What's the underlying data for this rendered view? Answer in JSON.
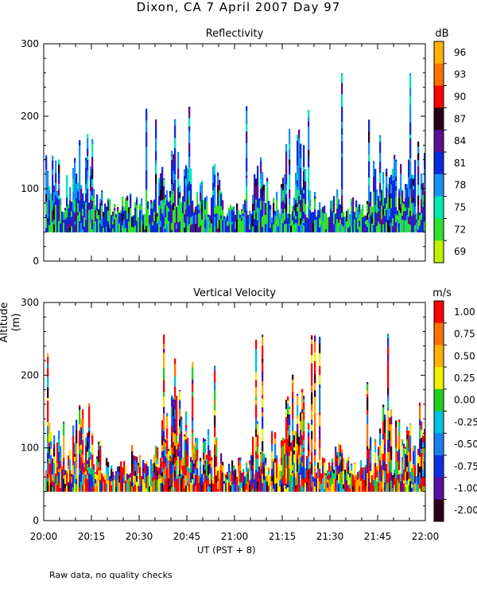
{
  "figure": {
    "title": "Dixon, CA   7 April 2007   Day  97",
    "ylabel": "Altitude (m)",
    "xlabel": "UT  (PST + 8)",
    "footnote": "Raw data, no quality checks"
  },
  "chart_data": [
    {
      "type": "heatmap",
      "title": "Reflectivity",
      "colorbar_unit": "dB",
      "colorbar_ticks": [
        "96",
        "93",
        "90",
        "87",
        "84",
        "81",
        "78",
        "75",
        "72",
        "69"
      ],
      "colorbar_colors": [
        "#ffb000",
        "#ff7000",
        "#ff0000",
        "#2a0016",
        "#5a1090",
        "#0a2ad8",
        "#1a90f0",
        "#00e8b0",
        "#30e030",
        "#c0f000"
      ],
      "xlim": [
        "20:00",
        "22:00"
      ],
      "ylim": [
        0,
        300
      ],
      "yticks": [
        0,
        100,
        200,
        300
      ],
      "xticks": [
        "20:00",
        "20:15",
        "20:30",
        "20:45",
        "21:00",
        "21:15",
        "21:30",
        "21:45",
        "22:00"
      ],
      "data_min_altitude": 40,
      "typical_max_altitude": 180,
      "max_altitude": 280
    },
    {
      "type": "heatmap",
      "title": "Vertical Velocity",
      "colorbar_unit": "m/s",
      "colorbar_ticks": [
        "1.00",
        "0.75",
        "0.50",
        "0.25",
        "0.00",
        "-0.25",
        "-0.50",
        "-0.75",
        "-1.00",
        "-2.00"
      ],
      "colorbar_colors": [
        "#ff0000",
        "#ff7000",
        "#ffb000",
        "#f0f000",
        "#20d020",
        "#00c0e0",
        "#1a80f0",
        "#1030e0",
        "#5a10a0",
        "#300018"
      ],
      "xlim": [
        "20:00",
        "22:00"
      ],
      "ylim": [
        0,
        300
      ],
      "yticks": [
        0,
        100,
        200,
        300
      ],
      "xticks": [
        "20:00",
        "20:15",
        "20:30",
        "20:45",
        "21:00",
        "21:15",
        "21:30",
        "21:45",
        "22:00"
      ],
      "data_min_altitude": 40,
      "typical_max_altitude": 180,
      "max_altitude": 280
    }
  ]
}
